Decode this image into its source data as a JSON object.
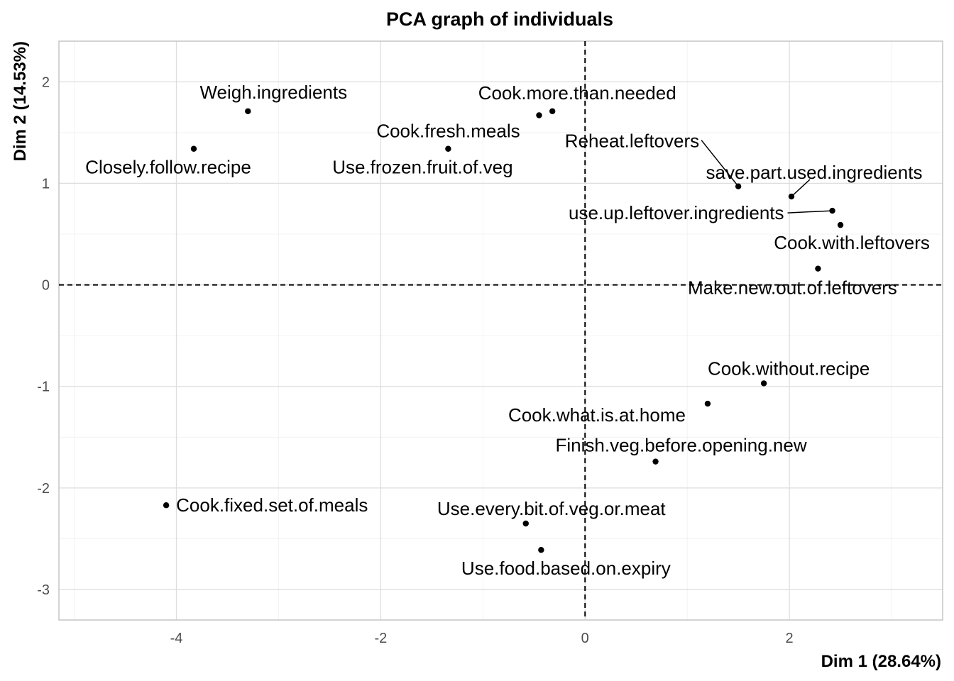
{
  "chart_data": {
    "type": "scatter",
    "title": "PCA graph of individuals",
    "xlabel": "Dim 1 (28.64%)",
    "ylabel": "Dim 2 (14.53%)",
    "xlim": [
      -5.15,
      3.5
    ],
    "ylim": [
      -3.3,
      2.4
    ],
    "x_ticks": [
      -4,
      -2,
      0,
      2
    ],
    "y_ticks": [
      -3,
      -2,
      -1,
      0,
      1,
      2
    ],
    "reference_lines": {
      "x": 0,
      "y": 0,
      "style": "dashed"
    },
    "grid": true,
    "points": [
      {
        "label": "Weigh.ingredients",
        "x": -3.3,
        "y": 1.71
      },
      {
        "label": "Closely.follow.recipe",
        "x": -3.83,
        "y": 1.34
      },
      {
        "label": "Cook.more.than.needed",
        "x": -0.32,
        "y": 1.71
      },
      {
        "label": "Cook.fresh.meals",
        "x": -0.45,
        "y": 1.67
      },
      {
        "label": "Use.frozen.fruit.of.veg",
        "x": -1.34,
        "y": 1.34
      },
      {
        "label": "Reheat.leftovers",
        "x": 1.5,
        "y": 0.97
      },
      {
        "label": "save.part.used.ingredients",
        "x": 2.02,
        "y": 0.87
      },
      {
        "label": "use.up.leftover.ingredients",
        "x": 2.42,
        "y": 0.73
      },
      {
        "label": "Cook.with.leftovers",
        "x": 2.5,
        "y": 0.59
      },
      {
        "label": "Make.new.out.of.leftovers",
        "x": 2.28,
        "y": 0.16
      },
      {
        "label": "Cook.without.recipe",
        "x": 1.75,
        "y": -0.97
      },
      {
        "label": "Cook.what.is.at.home",
        "x": 1.2,
        "y": -1.17
      },
      {
        "label": "Finish.veg.before.opening.new",
        "x": 0.69,
        "y": -1.74
      },
      {
        "label": "Cook.fixed.set.of.meals",
        "x": -4.1,
        "y": -2.17
      },
      {
        "label": "Use.every.bit.of.veg.or.meat",
        "x": -0.58,
        "y": -2.35
      },
      {
        "label": "Use.food.based.on.expiry",
        "x": -0.43,
        "y": -2.61
      }
    ]
  }
}
